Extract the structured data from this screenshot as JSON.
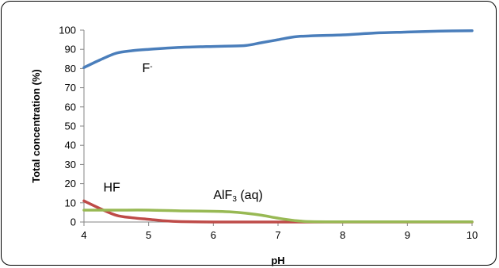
{
  "chart_data": {
    "type": "line",
    "title": "",
    "xlabel": "pH",
    "ylabel": "Total concentration (%)",
    "xlim": [
      4,
      10
    ],
    "ylim": [
      0,
      100
    ],
    "xticks": [
      4,
      5,
      6,
      7,
      8,
      9,
      10
    ],
    "yticks": [
      0,
      10,
      20,
      30,
      40,
      50,
      60,
      70,
      80,
      90,
      100
    ],
    "grid": false,
    "legend": "none",
    "series": [
      {
        "name": "F-",
        "color": "#4a7ebb",
        "x": [
          4.0,
          4.25,
          4.5,
          4.75,
          5.0,
          5.5,
          6.0,
          6.25,
          6.5,
          6.75,
          7.0,
          7.25,
          7.5,
          8.0,
          8.5,
          9.0,
          9.5,
          10.0
        ],
        "y": [
          80.5,
          84.5,
          88.0,
          89.3,
          90.0,
          91.0,
          91.5,
          91.7,
          92.0,
          93.5,
          95.0,
          96.5,
          97.0,
          97.5,
          98.5,
          99.0,
          99.5,
          99.7
        ]
      },
      {
        "name": "HF",
        "color": "#be4b48",
        "x": [
          4.0,
          4.25,
          4.5,
          4.75,
          5.0,
          5.25,
          5.5,
          6.0,
          6.5,
          7.0,
          7.5,
          8.0,
          8.5,
          9.0,
          9.5,
          10.0
        ],
        "y": [
          11.0,
          7.0,
          3.5,
          2.2,
          1.4,
          0.6,
          0.2,
          0.0,
          0.0,
          0.0,
          0.0,
          0.0,
          0.0,
          0.0,
          0.0,
          0.0
        ]
      },
      {
        "name": "AlF3 (aq)",
        "color": "#98b954",
        "x": [
          4.0,
          4.5,
          5.0,
          5.5,
          6.0,
          6.25,
          6.5,
          6.75,
          7.0,
          7.25,
          7.5,
          8.0,
          8.5,
          9.0,
          9.5,
          10.0
        ],
        "y": [
          6.2,
          6.2,
          6.2,
          5.8,
          5.6,
          5.3,
          4.6,
          3.5,
          2.0,
          0.8,
          0.2,
          0.1,
          0.1,
          0.1,
          0.1,
          0.1
        ]
      }
    ],
    "annotations": [
      {
        "text": "F",
        "superscript": "-",
        "x": 4.9,
        "y": 78
      },
      {
        "text": "HF",
        "x": 4.3,
        "y": 16
      },
      {
        "text": "AlF",
        "subscript": "3",
        "suffix": " (aq)",
        "x": 6.0,
        "y": 12
      }
    ]
  }
}
